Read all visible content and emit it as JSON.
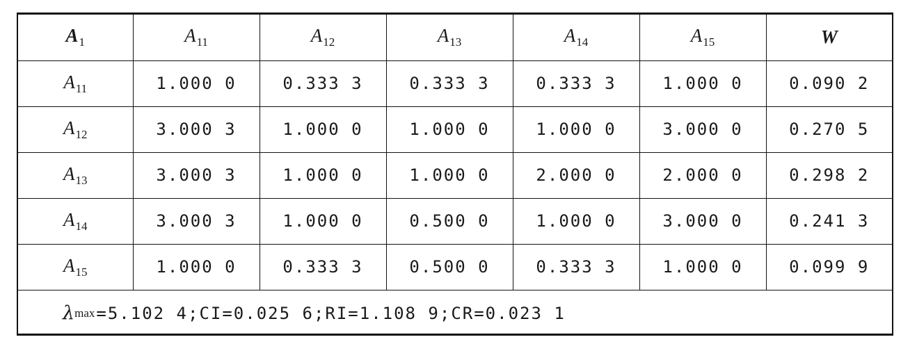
{
  "table": {
    "header": [
      {
        "base": "A",
        "sub": "1",
        "bold": true
      },
      {
        "base": "A",
        "sub": "11",
        "bold": false
      },
      {
        "base": "A",
        "sub": "12",
        "bold": false
      },
      {
        "base": "A",
        "sub": "13",
        "bold": false
      },
      {
        "base": "A",
        "sub": "14",
        "bold": false
      },
      {
        "base": "A",
        "sub": "15",
        "bold": false
      },
      {
        "base": "W",
        "sub": "",
        "bold": true
      }
    ],
    "rows": [
      {
        "label": {
          "base": "A",
          "sub": "11"
        },
        "values": [
          "1.000 0",
          "0.333 3",
          "0.333 3",
          "0.333 3",
          "1.000 0",
          "0.090 2"
        ]
      },
      {
        "label": {
          "base": "A",
          "sub": "12"
        },
        "values": [
          "3.000 3",
          "1.000 0",
          "1.000 0",
          "1.000 0",
          "3.000 0",
          "0.270 5"
        ]
      },
      {
        "label": {
          "base": "A",
          "sub": "13"
        },
        "values": [
          "3.000 3",
          "1.000 0",
          "1.000 0",
          "2.000 0",
          "2.000 0",
          "0.298 2"
        ]
      },
      {
        "label": {
          "base": "A",
          "sub": "14"
        },
        "values": [
          "3.000 3",
          "1.000 0",
          "0.500 0",
          "1.000 0",
          "3.000 0",
          "0.241 3"
        ]
      },
      {
        "label": {
          "base": "A",
          "sub": "15"
        },
        "values": [
          "1.000 0",
          "0.333 3",
          "0.500 0",
          "0.333 3",
          "1.000 0",
          "0.099 9"
        ]
      }
    ]
  },
  "footer": {
    "lambda_symbol": "λ",
    "lambda_sub": "max",
    "stats_text": "=5.102 4;CI=0.025 6;RI=1.108 9;CR=0.023 1"
  }
}
